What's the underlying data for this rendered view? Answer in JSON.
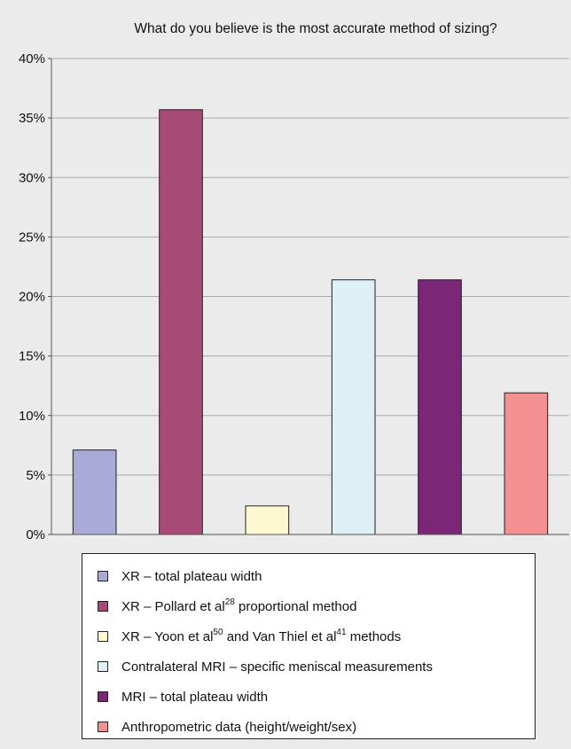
{
  "chart_data": {
    "type": "bar",
    "title": "What do you believe is the most accurate method of sizing?",
    "xlabel": "",
    "ylabel": "",
    "ylim": [
      0,
      40
    ],
    "yticks": [
      "0%",
      "5%",
      "10%",
      "15%",
      "20%",
      "25%",
      "30%",
      "35%",
      "40%"
    ],
    "grid": true,
    "legend_position": "bottom",
    "categories": [
      "XR – total plateau width",
      "XR – Pollard et al28 proportional method",
      "XR – Yoon et al50 and Van Thiel et al41 methods",
      "Contralateral MRI – specific meniscal measurements",
      "MRI – total plateau width",
      "Anthropometric data (height/weight/sex)"
    ],
    "values": [
      7.1,
      35.7,
      2.4,
      21.4,
      21.4,
      11.9
    ],
    "colors": [
      "#aaaad6",
      "#a84a76",
      "#fdf8d2",
      "#dcf0f6",
      "#7c2677",
      "#f39092"
    ],
    "legend": [
      {
        "text": "XR – total plateau width",
        "sup1": "",
        "mid": "",
        "sup2": "",
        "tail": ""
      },
      {
        "text": "XR – Pollard et al",
        "sup1": "28",
        "mid": " proportional method",
        "sup2": "",
        "tail": ""
      },
      {
        "text": "XR – Yoon et al",
        "sup1": "50",
        "mid": " and Van Thiel et al",
        "sup2": "41",
        "tail": " methods"
      },
      {
        "text": "Contralateral MRI – specific meniscal measurements",
        "sup1": "",
        "mid": "",
        "sup2": "",
        "tail": ""
      },
      {
        "text": "MRI – total plateau width",
        "sup1": "",
        "mid": "",
        "sup2": "",
        "tail": ""
      },
      {
        "text": "Anthropometric data (height/weight/sex)",
        "sup1": "",
        "mid": "",
        "sup2": "",
        "tail": ""
      }
    ]
  }
}
